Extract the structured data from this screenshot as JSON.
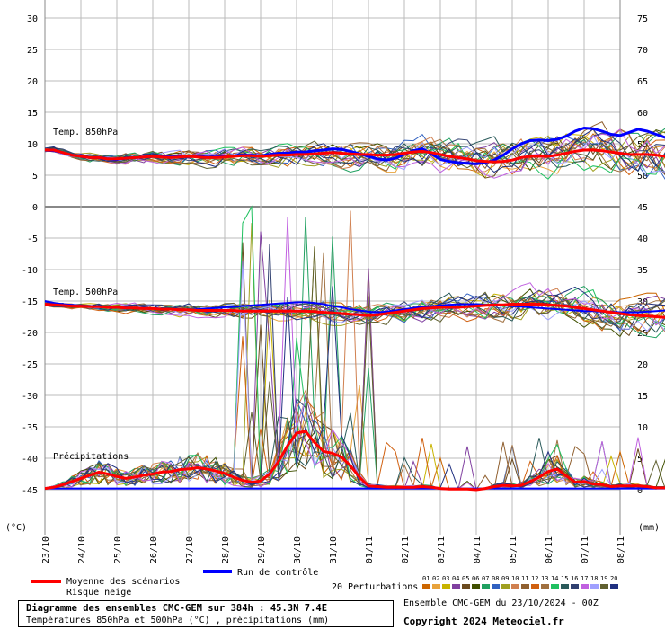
{
  "chart_data": {
    "type": "line",
    "title": "Diagramme des ensembles CMC-GEM sur 384h : 45.3N 7.4E",
    "subtitle": "Températures 850hPa et 500hPa (°C) , précipitations (mm)",
    "run_info": "Ensemble CMC-GEM du 23/10/2024 - 00Z",
    "copyright": "Copyright 2024 Meteociel.fr",
    "left_axis": {
      "unit_label": "(°C)",
      "ticks": [
        "30",
        "25",
        "20",
        "15",
        "10",
        "5",
        "0",
        "-5",
        "-10",
        "-15",
        "-20",
        "-25",
        "-30",
        "-35",
        "-40",
        "-45"
      ],
      "ylim": [
        -45,
        30
      ]
    },
    "right_axis": {
      "unit_label": "(mm)",
      "ticks": [
        "75",
        "70",
        "65",
        "60",
        "55",
        "50",
        "45",
        "40",
        "35",
        "30",
        "25",
        "20",
        "15",
        "10",
        "5",
        "0"
      ],
      "ylim": [
        0,
        75
      ]
    },
    "x_ticks": [
      "23/10",
      "24/10",
      "25/10",
      "26/10",
      "27/10",
      "28/10",
      "29/10",
      "30/10",
      "31/10",
      "01/11",
      "02/11",
      "03/11",
      "04/11",
      "05/11",
      "06/11",
      "07/11",
      "08/11"
    ],
    "x_range_hours": [
      0,
      384
    ],
    "step_hours": 6,
    "panel_labels": [
      "Temp. 850hPa",
      "Temp. 500hPa",
      "Précipitations"
    ],
    "legend": {
      "mean_label": "Moyenne des scénarios",
      "snow_label": "Risque neige",
      "control_label": "Run de contrôle",
      "perturbations_label": "20 Perturbations",
      "perturbation_numbers": [
        "01",
        "02",
        "03",
        "04",
        "05",
        "06",
        "07",
        "08",
        "09",
        "10",
        "11",
        "12",
        "13",
        "14",
        "15",
        "16",
        "17",
        "18",
        "19",
        "20"
      ]
    },
    "colors": {
      "mean": "#ff0000",
      "control": "#0000ff",
      "grid": "#bbbbbb",
      "zero_line": "#888888",
      "perturbations": [
        "#cc6600",
        "#e8a33c",
        "#c8b400",
        "#8040a0",
        "#6b4a1e",
        "#405000",
        "#20a060",
        "#3060c0",
        "#a0a020",
        "#d08050",
        "#906030",
        "#d06010",
        "#a07040",
        "#20c060",
        "#2a5a5a",
        "#304070",
        "#c060e0",
        "#a0a0ff",
        "#606030",
        "#203080"
      ]
    },
    "series": {
      "t850_mean": [
        9,
        9,
        8.6,
        8.2,
        8,
        7.8,
        7.8,
        7.6,
        7.6,
        7.7,
        7.8,
        7.9,
        8,
        7.9,
        7.8,
        7.9,
        8,
        7.9,
        7.8,
        7.8,
        7.9,
        8,
        8.1,
        8.1,
        8,
        8.1,
        8.2,
        8.2,
        8.3,
        8.3,
        8.4,
        8.5,
        8.6,
        8.5,
        8.4,
        8.3,
        8.3,
        8.2,
        8.2,
        8.3,
        8.5,
        8.7,
        8.8,
        8.6,
        8.3,
        8,
        7.8,
        7.6,
        7.3,
        7.2,
        7.1,
        7.2,
        7.4,
        7.8,
        8,
        8,
        8,
        8.2,
        8.5,
        8.8,
        9,
        9,
        8.9,
        8.7,
        8.5,
        8.3,
        8.3,
        8.3,
        8.2,
        8,
        7.8,
        7.6,
        7.4,
        7.2,
        7,
        6.8,
        6.7,
        6.6,
        6.8,
        7,
        7,
        6.8,
        6.6,
        6.4,
        6.3,
        6.2,
        6.3,
        6.4,
        6.5,
        6.3,
        6.2,
        6,
        5.8,
        5.6,
        5.5,
        5.4,
        5.4
      ],
      "t850_control": [
        9,
        8.9,
        8.6,
        8.2,
        8,
        7.8,
        7.8,
        7.6,
        7.5,
        7.7,
        7.8,
        7.9,
        8,
        8,
        7.9,
        8,
        8.1,
        8,
        7.9,
        7.9,
        8,
        8.1,
        8.2,
        8.2,
        8.1,
        8.3,
        8.5,
        8.5,
        8.7,
        8.7,
        8.9,
        9,
        9.2,
        9.1,
        8.8,
        8.4,
        8,
        7.6,
        7.4,
        7.7,
        8.3,
        8.9,
        9.2,
        8.4,
        7.5,
        7.2,
        7,
        6.9,
        6.8,
        7,
        7.4,
        8.2,
        9.2,
        10,
        10.5,
        10.6,
        10.5,
        10.7,
        11.2,
        12,
        12.5,
        12.4,
        12,
        11.5,
        11.3,
        11.8,
        12.3,
        12,
        11.5,
        11,
        10.5,
        10,
        9.5,
        9,
        8.5,
        8,
        7.7,
        7.5,
        7.8,
        8,
        7.5,
        7,
        6.7,
        6.5,
        6.4,
        6.5,
        6.8,
        7.2,
        7.5,
        7.5,
        7.2,
        7.4,
        8,
        8.8,
        9.3,
        10,
        10.5,
        10.3
      ],
      "t500_mean": [
        -15.5,
        -15.6,
        -15.7,
        -15.8,
        -15.8,
        -15.9,
        -15.9,
        -16,
        -16,
        -16.1,
        -16.1,
        -16.2,
        -16.2,
        -16.3,
        -16.3,
        -16.4,
        -16.4,
        -16.5,
        -16.5,
        -16.5,
        -16.5,
        -16.5,
        -16.6,
        -16.6,
        -16.6,
        -16.6,
        -16.6,
        -16.6,
        -16.6,
        -16.6,
        -16.7,
        -16.8,
        -16.9,
        -17,
        -17.1,
        -17.2,
        -17.3,
        -17.2,
        -17,
        -16.8,
        -16.6,
        -16.4,
        -16.2,
        -16.1,
        -16,
        -16,
        -16,
        -15.9,
        -15.8,
        -15.7,
        -15.6,
        -15.6,
        -15.5,
        -15.5,
        -15.5,
        -15.5,
        -15.6,
        -15.7,
        -15.8,
        -16,
        -16.2,
        -16.4,
        -16.6,
        -16.8,
        -17,
        -17.2,
        -17.3,
        -17.4,
        -17.5,
        -17.6,
        -17.6,
        -17.6,
        -17.6,
        -17.6,
        -17.6,
        -17.6,
        -17.5,
        -17.5,
        -17.4,
        -17.4,
        -17.3,
        -17.3,
        -17.3,
        -17.3,
        -17.2,
        -17.2,
        -17.2,
        -17.3,
        -17.4,
        -17.5,
        -17.7,
        -17.9,
        -18,
        -18.1,
        -18.2,
        -18.3,
        -18.4
      ],
      "t500_control": [
        -15,
        -15.3,
        -15.5,
        -15.6,
        -15.7,
        -15.8,
        -15.8,
        -15.9,
        -16,
        -16,
        -16.1,
        -16.1,
        -16.2,
        -16.2,
        -16.3,
        -16.3,
        -16.4,
        -16.3,
        -16.2,
        -16.1,
        -16,
        -15.9,
        -15.8,
        -15.7,
        -15.6,
        -15.5,
        -15.4,
        -15.3,
        -15.2,
        -15.2,
        -15.3,
        -15.5,
        -15.8,
        -16,
        -16.3,
        -16.5,
        -16.7,
        -16.8,
        -16.7,
        -16.5,
        -16.3,
        -16.1,
        -15.9,
        -15.8,
        -15.7,
        -15.6,
        -15.5,
        -15.5,
        -15.5,
        -15.6,
        -15.6,
        -15.7,
        -15.8,
        -15.9,
        -16,
        -16.1,
        -16.2,
        -16.3,
        -16.4,
        -16.5,
        -16.6,
        -16.6,
        -16.7,
        -16.7,
        -16.8,
        -16.8,
        -16.8,
        -16.7,
        -16.6,
        -16.5,
        -16.4,
        -16.3,
        -16.2,
        -16.1,
        -16.1,
        -16,
        -16,
        -15.9,
        -15.9,
        -15.8,
        -15.8,
        -15.8,
        -15.8,
        -15.8,
        -15.8,
        -15.9,
        -15.9,
        -16,
        -16,
        -16.1,
        -16.1,
        -16.2,
        -16.2,
        -16.3,
        -16.3,
        -16.4,
        -16.5
      ],
      "precip_mean": [
        0.2,
        0.4,
        0.8,
        1.3,
        1.8,
        2.3,
        2.8,
        2.5,
        2.1,
        1.8,
        2,
        2.3,
        2.5,
        2.8,
        2.9,
        3.2,
        3.3,
        3.5,
        3.3,
        3,
        2.6,
        2,
        1.5,
        1.2,
        1.4,
        2.5,
        4.5,
        7,
        9,
        9.3,
        7.5,
        6.1,
        5.8,
        5.2,
        3.8,
        2,
        0.6,
        0.5,
        0.4,
        0.4,
        0.4,
        0.4,
        0.5,
        0.4,
        0.2,
        0.1,
        0.1,
        0.1,
        0,
        0.2,
        0.5,
        0.7,
        0.6,
        0.7,
        1.3,
        2,
        2.9,
        3.3,
        2.2,
        1.2,
        1.3,
        0.9,
        0.8,
        0.5,
        0.6,
        0.6,
        0.6,
        0.5,
        0.3,
        0.3,
        0.3,
        0.3,
        0.2,
        0.2,
        0.2,
        0.2,
        0.2,
        0.2,
        0.2,
        0.2,
        0.2,
        0.2,
        0.2,
        0.2,
        0.2,
        0.2,
        0.2,
        0.2,
        0.2,
        0.5,
        1,
        1,
        1,
        2.3,
        1.8,
        1.5,
        2
      ],
      "precip_control": [
        0.2,
        0.2,
        0.2,
        0.2,
        0.2,
        0.2,
        0.2,
        0.2,
        0.2,
        0.2,
        0.2,
        0.2,
        0.2,
        0.2,
        0.2,
        0.2,
        0.2,
        0.2,
        0.2,
        0.2,
        0.2,
        0.2,
        0.2,
        0.2,
        0.2,
        0.2,
        0.2,
        0.2,
        0.2,
        0.2,
        0.2,
        0.2,
        0.2,
        0.2,
        0.2,
        0.2,
        0.2,
        0.2,
        0.2,
        0.2,
        0.2,
        0.2,
        0.2,
        0.2,
        0.2,
        0.2,
        0.2,
        0.2,
        0.2,
        0.2,
        0.2,
        0.2,
        0.2,
        0.2,
        0.2,
        0.2,
        0.2,
        0.2,
        0.2,
        0.2,
        0.2,
        0.2,
        0.2,
        0.2,
        0.2,
        0.2,
        0.2,
        0.2,
        0.2,
        0.2,
        0.2,
        0.2,
        0.2,
        0.2,
        0.2,
        0.2,
        0.2,
        0.2,
        0.2,
        0.2,
        0.2,
        0.2,
        0.2,
        0.2,
        0.2,
        0.2,
        0.2,
        0.2,
        0.2,
        0.2,
        0.2,
        0.2,
        0.2,
        0.2,
        0.2,
        0.2,
        0.2
      ],
      "perturbation_noise": {
        "t850_spread_start": 0.5,
        "t850_spread_end": 5.5,
        "t500_spread_start": 0.4,
        "t500_spread_end": 4.5,
        "precip_spike_window": [
          22,
          36
        ],
        "precip_spike_max": 45
      }
    }
  }
}
